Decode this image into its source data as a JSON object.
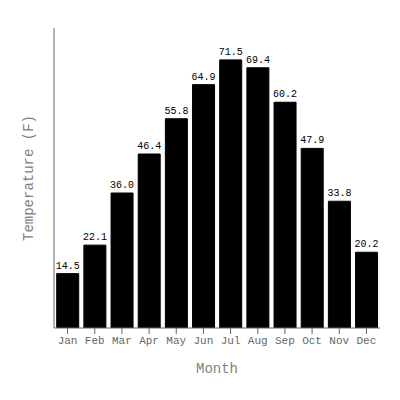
{
  "chart_data": {
    "type": "bar",
    "categories": [
      "Jan",
      "Feb",
      "Mar",
      "Apr",
      "May",
      "Jun",
      "Jul",
      "Aug",
      "Sep",
      "Oct",
      "Nov",
      "Dec"
    ],
    "values": [
      14.5,
      22.1,
      36.0,
      46.4,
      55.8,
      64.9,
      71.5,
      69.4,
      60.2,
      47.9,
      33.8,
      20.2
    ],
    "value_labels": [
      "14.5",
      "22.1",
      "36.0",
      "46.4",
      "55.8",
      "64.9",
      "71.5",
      "69.4",
      "60.2",
      "47.9",
      "33.8",
      "20.2"
    ],
    "color": "#000000",
    "xlabel": "Month",
    "ylabel": "Temperature (F)",
    "ylim": [
      0,
      80
    ],
    "tick_labels": "x",
    "data_labels": true,
    "grid": false
  }
}
